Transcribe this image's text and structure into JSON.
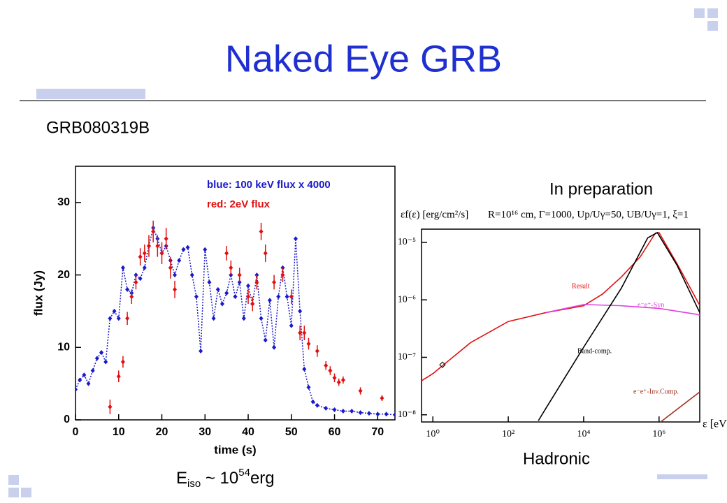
{
  "slide": {
    "title": "Naked Eye GRB",
    "subtitle": "GRB080319B",
    "note": "In preparation",
    "caption": "Hadronic",
    "energy": {
      "symbol": "E",
      "subscript": "iso",
      "relation": " ~ 10",
      "exponent": "54",
      "unit": "erg"
    }
  },
  "chart_data": [
    {
      "type": "line",
      "x_label": "time (s)",
      "y_label": "flux (Jy)",
      "xlim": [
        0,
        74
      ],
      "ylim": [
        0,
        35
      ],
      "xticks": [
        0,
        10,
        20,
        30,
        40,
        50,
        60,
        70
      ],
      "yticks": [
        0,
        10,
        20,
        30
      ],
      "grid": false,
      "series": [
        {
          "name": "blue: 100 keV flux x 4000",
          "color": "#1a1acc",
          "line": "dotted",
          "x": [
            0,
            1,
            2,
            3,
            4,
            5,
            6,
            7,
            8,
            9,
            10,
            11,
            12,
            13,
            14,
            15,
            16,
            17,
            18,
            19,
            20,
            21,
            22,
            23,
            24,
            25,
            26,
            27,
            28,
            29,
            30,
            31,
            32,
            33,
            34,
            35,
            36,
            37,
            38,
            39,
            40,
            41,
            42,
            43,
            44,
            45,
            46,
            47,
            48,
            49,
            50,
            51,
            52,
            53,
            54,
            55,
            56,
            58,
            60,
            62,
            64,
            66,
            68,
            70,
            72,
            74
          ],
          "values": [
            4.2,
            5.5,
            6.2,
            5,
            6.8,
            8.5,
            9.3,
            8,
            14,
            15,
            14,
            21,
            18,
            17.5,
            20,
            19.5,
            21,
            24,
            26.5,
            25,
            23,
            24,
            22,
            20,
            22,
            23.5,
            23.8,
            20,
            17,
            9.5,
            23.5,
            19,
            14,
            18,
            16,
            17.5,
            20,
            17,
            19,
            14,
            18.5,
            16,
            20,
            14,
            11,
            16.5,
            10,
            17,
            21,
            17,
            13,
            25,
            15,
            7,
            4.5,
            2.5,
            2,
            1.6,
            1.4,
            1.2,
            1.2,
            1,
            0.9,
            0.8,
            0.8,
            0.7
          ]
        },
        {
          "name": "red: 2eV flux",
          "color": "#e01010",
          "line": "none",
          "x": [
            8,
            10,
            11,
            12,
            13,
            14,
            15,
            16,
            17,
            18,
            19,
            20,
            21,
            22,
            23,
            35,
            36,
            38,
            40,
            41,
            42,
            43,
            44,
            46,
            48,
            50,
            52,
            53,
            54,
            56,
            58,
            59,
            60,
            61,
            62,
            66,
            71
          ],
          "values": [
            1.8,
            6,
            8,
            14,
            17,
            19,
            22.5,
            23,
            24,
            26,
            24,
            23,
            25,
            21,
            18,
            23,
            21,
            20,
            17,
            16,
            19,
            26,
            23,
            19,
            20,
            17,
            12,
            12,
            10.5,
            9.5,
            7.5,
            6.8,
            5.8,
            5.2,
            5.5,
            4,
            3
          ],
          "errors": [
            1,
            0.8,
            0.8,
            0.9,
            1,
            1,
            1.2,
            1.2,
            1.5,
            1.5,
            1.5,
            1.5,
            1.5,
            1.5,
            1.2,
            1,
            1,
            1,
            1,
            1,
            1,
            1.2,
            1.2,
            1,
            1,
            1,
            1,
            1,
            0.8,
            0.8,
            0.6,
            0.6,
            0.6,
            0.5,
            0.5,
            0.5,
            0.4
          ]
        }
      ]
    },
    {
      "type": "line",
      "xscale": "log",
      "yscale": "log",
      "header": "R=10¹⁶ cm, Γ=1000, Up/Uγ=50, UB/Uγ=1, ξ=1",
      "x_label": "ε [eV]",
      "y_label": "εf(ε) [erg/cm²/s]",
      "xlim": [
        0.5,
        12000000
      ],
      "ylim": [
        7.5e-09,
        1.7e-05
      ],
      "xticks": [
        {
          "value": 1,
          "label": "10⁰"
        },
        {
          "value": 100,
          "label": "10²"
        },
        {
          "value": 10000,
          "label": "10⁴"
        },
        {
          "value": 1000000,
          "label": "10⁶"
        }
      ],
      "yticks": [
        {
          "value": 1e-08,
          "label": "10⁻⁸"
        },
        {
          "value": 1e-07,
          "label": "10⁻⁷"
        },
        {
          "value": 1e-06,
          "label": "10⁻⁶"
        },
        {
          "value": 1e-05,
          "label": "10⁻⁵"
        }
      ],
      "markers": [
        {
          "x": 1.8,
          "y": 7.4e-08
        }
      ],
      "series": [
        {
          "name": "Result",
          "color": "#e01010",
          "x": [
            0.5,
            1,
            10,
            100,
            1000,
            10000,
            31623,
            100000,
            316228,
            800000,
            1000000,
            3162278,
            10000000,
            12000000
          ],
          "values": [
            3.9e-08,
            5.2e-08,
            1.8e-07,
            4.2e-07,
            6e-07,
            7.9e-07,
            1.26e-06,
            2.5e-06,
            5.6e-06,
            1.45e-05,
            1.48e-05,
            4e-06,
            1e-06,
            8e-07
          ]
        },
        {
          "name": "e⁻e⁺-Syn",
          "color": "#e040e0",
          "x": [
            1000,
            10000,
            100000,
            1000000,
            10000000,
            12000000
          ],
          "values": [
            6e-07,
            8.3e-07,
            7.9e-07,
            7.1e-07,
            5.6e-07,
            5.4e-07
          ]
        },
        {
          "name": "Band-comp.",
          "color": "#000000",
          "x": [
            630,
            1000,
            10000,
            100000,
            500000,
            900000,
            3000000,
            12000000
          ],
          "values": [
            7.9e-09,
            1.3e-08,
            1.5e-07,
            1.6e-06,
            1.2e-05,
            1.48e-05,
            4e-06,
            6e-07
          ]
        },
        {
          "name": "e⁻e⁺-Inv.Comp.",
          "color": "#a03020",
          "x": [
            1100000,
            12000000
          ],
          "values": [
            7.5e-09,
            2.5e-08
          ]
        }
      ]
    }
  ]
}
